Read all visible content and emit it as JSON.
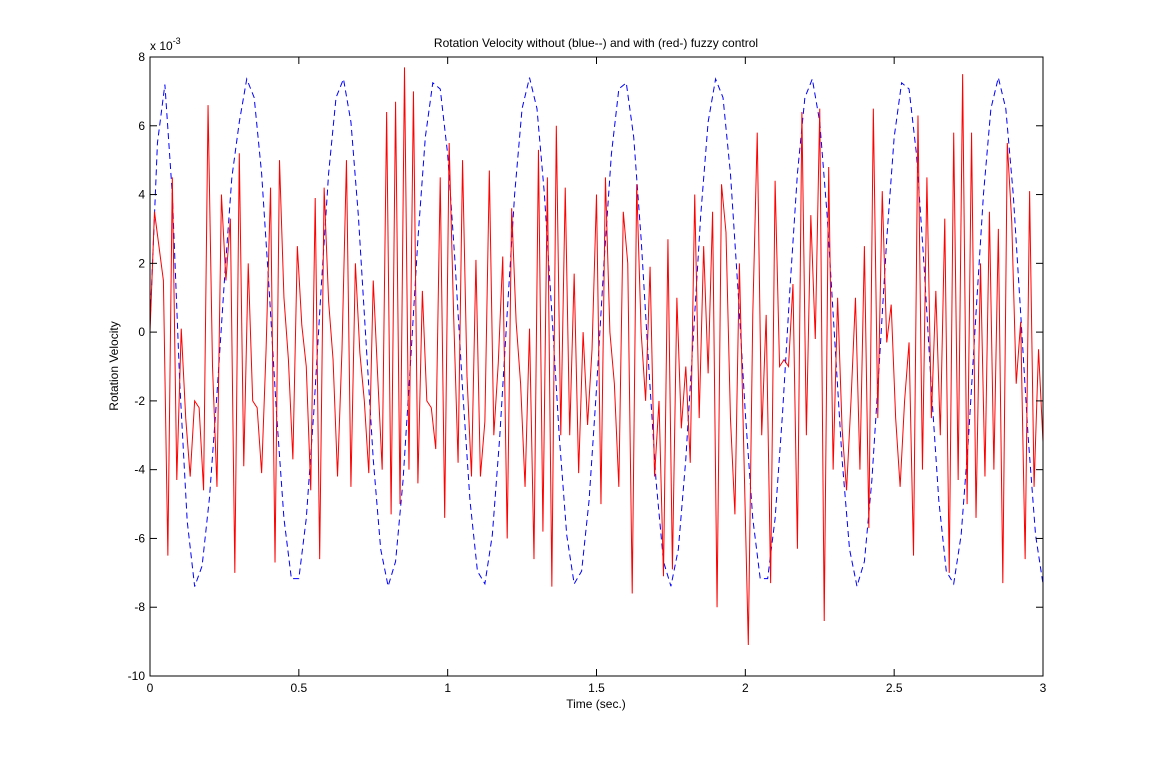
{
  "chart_data": {
    "type": "line",
    "title": "Rotation Velocity without (blue--) and with (red-) fuzzy control",
    "x_label": "Time (sec.)",
    "y_label": "Rotation Velocity",
    "y_multiplier": {
      "base": "x 10",
      "exponent": "-3"
    },
    "xlim": [
      0,
      3
    ],
    "xticks": [
      0,
      0.5,
      1,
      1.5,
      2,
      2.5,
      3
    ],
    "ylim": [
      -10,
      8
    ],
    "yticks": [
      -10,
      -8,
      -6,
      -4,
      -2,
      0,
      2,
      4,
      6,
      8
    ],
    "grid": false,
    "series": [
      {
        "color": "#0000ff",
        "dash": true,
        "x": [
          0,
          0.025,
          0.05,
          0.075,
          0.1,
          0.125,
          0.15,
          0.175,
          0.2,
          0.225,
          0.25,
          0.275,
          0.3,
          0.325,
          0.35,
          0.375,
          0.4,
          0.425,
          0.45,
          0.475,
          0.5,
          0.525,
          0.55,
          0.575,
          0.6,
          0.625,
          0.65,
          0.675,
          0.7,
          0.725,
          0.75,
          0.775,
          0.8,
          0.825,
          0.85,
          0.875,
          0.9,
          0.925,
          0.95,
          0.975,
          1,
          1.025,
          1.05,
          1.075,
          1.1,
          1.125,
          1.15,
          1.175,
          1.2,
          1.225,
          1.25,
          1.275,
          1.3,
          1.325,
          1.35,
          1.375,
          1.4,
          1.425,
          1.45,
          1.475,
          1.5,
          1.525,
          1.55,
          1.575,
          1.6,
          1.625,
          1.65,
          1.675,
          1.7,
          1.725,
          1.75,
          1.775,
          1.8,
          1.825,
          1.85,
          1.875,
          1.9,
          1.925,
          1.95,
          1.975,
          2,
          2.025,
          2.05,
          2.075,
          2.1,
          2.125,
          2.15,
          2.175,
          2.2,
          2.225,
          2.25,
          2.275,
          2.3,
          2.325,
          2.35,
          2.375,
          2.4,
          2.425,
          2.45,
          2.475,
          2.5,
          2.525,
          2.55,
          2.575,
          2.6,
          2.625,
          2.65,
          2.675,
          2.7,
          2.725,
          2.75,
          2.775,
          2.8,
          2.825,
          2.85,
          2.875,
          2.9,
          2.925,
          2.95,
          2.975,
          3
        ],
        "values": [
          0.2,
          5.5,
          7.2,
          4.0,
          -1.5,
          -5.5,
          -7.4,
          -6.8,
          -4.8,
          -1.8,
          1.5,
          4.5,
          6.11,
          7.36,
          6.82,
          4.61,
          1.28,
          -2.36,
          -5.42,
          -7.17,
          -7.17,
          -5.42,
          -2.36,
          1.28,
          4.61,
          6.82,
          7.36,
          6.11,
          3.38,
          -0.18,
          -3.7,
          -6.31,
          -7.39,
          -6.67,
          -4.32,
          -0.92,
          2.7,
          5.67,
          7.25,
          7.07,
          5.17,
          2.0,
          -1.65,
          -4.9,
          -6.95,
          -7.32,
          -5.9,
          -3.04,
          0.55,
          4.01,
          6.5,
          7.4,
          6.5,
          4.01,
          0.55,
          -3.04,
          -5.9,
          -7.32,
          -6.95,
          -4.9,
          -1.65,
          2.0,
          5.17,
          7.07,
          7.25,
          5.67,
          2.7,
          -0.92,
          -4.32,
          -6.67,
          -7.39,
          -6.31,
          -3.7,
          -0.18,
          3.38,
          6.11,
          7.36,
          6.82,
          4.61,
          1.28,
          -2.36,
          -5.42,
          -7.17,
          -7.17,
          -5.42,
          -2.36,
          1.28,
          4.61,
          6.82,
          7.36,
          6.11,
          3.38,
          -0.18,
          -3.7,
          -6.31,
          -7.39,
          -6.67,
          -4.32,
          -0.92,
          2.7,
          5.67,
          7.25,
          7.07,
          5.17,
          2.0,
          -1.65,
          -4.9,
          -6.95,
          -7.32,
          -5.9,
          -3.04,
          0.55,
          4.01,
          6.5,
          7.4,
          6.5,
          4.01,
          0.55,
          -3.04,
          -5.9,
          -7.32
        ]
      },
      {
        "color": "#ff0000",
        "dash": false,
        "x": [
          0,
          0.015,
          0.03,
          0.045,
          0.06,
          0.075,
          0.09,
          0.105,
          0.12,
          0.135,
          0.15,
          0.165,
          0.18,
          0.195,
          0.21,
          0.225,
          0.24,
          0.255,
          0.27,
          0.285,
          0.3,
          0.315,
          0.33,
          0.345,
          0.36,
          0.375,
          0.39,
          0.405,
          0.42,
          0.435,
          0.45,
          0.465,
          0.48,
          0.495,
          0.51,
          0.525,
          0.54,
          0.555,
          0.57,
          0.585,
          0.6,
          0.615,
          0.63,
          0.645,
          0.66,
          0.675,
          0.69,
          0.705,
          0.72,
          0.735,
          0.75,
          0.765,
          0.78,
          0.795,
          0.81,
          0.825,
          0.84,
          0.855,
          0.87,
          0.885,
          0.9,
          0.915,
          0.93,
          0.945,
          0.96,
          0.975,
          0.99,
          1.005,
          1.02,
          1.035,
          1.05,
          1.065,
          1.08,
          1.095,
          1.11,
          1.125,
          1.14,
          1.155,
          1.17,
          1.185,
          1.2,
          1.215,
          1.23,
          1.245,
          1.26,
          1.275,
          1.29,
          1.305,
          1.32,
          1.335,
          1.35,
          1.365,
          1.38,
          1.395,
          1.41,
          1.425,
          1.44,
          1.455,
          1.47,
          1.485,
          1.5,
          1.515,
          1.53,
          1.545,
          1.56,
          1.575,
          1.59,
          1.605,
          1.62,
          1.635,
          1.65,
          1.665,
          1.68,
          1.695,
          1.71,
          1.725,
          1.74,
          1.755,
          1.77,
          1.785,
          1.8,
          1.815,
          1.83,
          1.845,
          1.86,
          1.875,
          1.89,
          1.905,
          1.92,
          1.935,
          1.95,
          1.965,
          1.98,
          1.995,
          2.01,
          2.025,
          2.04,
          2.055,
          2.07,
          2.085,
          2.1,
          2.115,
          2.13,
          2.145,
          2.16,
          2.175,
          2.19,
          2.205,
          2.22,
          2.235,
          2.25,
          2.265,
          2.28,
          2.295,
          2.31,
          2.325,
          2.34,
          2.355,
          2.37,
          2.385,
          2.4,
          2.415,
          2.43,
          2.445,
          2.46,
          2.475,
          2.49,
          2.505,
          2.52,
          2.535,
          2.55,
          2.565,
          2.58,
          2.595,
          2.61,
          2.625,
          2.64,
          2.655,
          2.67,
          2.685,
          2.7,
          2.715,
          2.73,
          2.745,
          2.76,
          2.775,
          2.79,
          2.805,
          2.82,
          2.835,
          2.85,
          2.865,
          2.88,
          2.895,
          2.91,
          2.925,
          2.94,
          2.955,
          2.97,
          2.985,
          3
        ],
        "values": [
          0.0,
          3.5,
          2.5,
          1.5,
          -6.5,
          4.5,
          -4.3,
          0.1,
          -2.5,
          -4.2,
          -2.0,
          -2.2,
          -4.6,
          6.6,
          -1.0,
          -4.5,
          4.0,
          1.5,
          3.3,
          -7.0,
          5.2,
          -3.9,
          2.0,
          -2.0,
          -2.2,
          -4.1,
          -0.5,
          4.2,
          -6.7,
          5.0,
          1.0,
          -0.8,
          -3.7,
          2.5,
          0.2,
          -1.0,
          -4.6,
          3.9,
          -6.6,
          4.2,
          0.9,
          -0.8,
          -4.2,
          -0.5,
          5.0,
          -4.5,
          2.0,
          -0.6,
          -2.0,
          -4.1,
          1.5,
          -1.3,
          -4.0,
          6.4,
          -5.3,
          6.7,
          -5.0,
          7.7,
          -4.0,
          7.0,
          -4.4,
          1.2,
          -2.0,
          -2.2,
          -3.4,
          4.5,
          -5.4,
          5.5,
          0.5,
          -3.8,
          5.0,
          -1.3,
          -4.2,
          2.1,
          -4.2,
          -2.6,
          4.7,
          -3.0,
          -0.9,
          2.2,
          -6.0,
          3.6,
          0.3,
          -1.5,
          -4.5,
          0.1,
          -6.6,
          5.3,
          -5.8,
          4.5,
          -7.4,
          6.0,
          -3.0,
          4.2,
          -3.0,
          1.7,
          -4.1,
          0.0,
          -2.7,
          -0.5,
          4.0,
          -5.0,
          4.5,
          0.0,
          -1.5,
          -4.5,
          3.5,
          2.0,
          -7.6,
          4.3,
          0.0,
          -2.0,
          1.9,
          -4.2,
          -2.0,
          -7.1,
          2.7,
          -6.9,
          1.0,
          -2.8,
          -1.0,
          -3.8,
          4.0,
          -2.5,
          2.5,
          -1.2,
          3.5,
          -8.0,
          4.3,
          2.9,
          -2.5,
          -5.3,
          2.0,
          -3.5,
          -9.1,
          0.5,
          5.8,
          -3.0,
          0.5,
          -7.3,
          4.4,
          -1.0,
          -0.8,
          -1.0,
          1.4,
          -6.3,
          6.4,
          -3.0,
          3.4,
          -0.2,
          6.5,
          -8.4,
          4.8,
          -4.0,
          1.0,
          -2.8,
          -4.6,
          -2.0,
          1.0,
          -4.0,
          2.5,
          -5.7,
          6.5,
          -2.5,
          4.1,
          -0.3,
          0.8,
          -2.5,
          -4.5,
          -2.0,
          -0.3,
          -6.5,
          6.3,
          -4.0,
          4.5,
          -2.5,
          1.2,
          -3.0,
          3.3,
          -7.0,
          5.8,
          -4.3,
          7.5,
          -5.0,
          5.8,
          -5.4,
          2.0,
          -4.2,
          3.5,
          -4.0,
          3.0,
          -7.3,
          5.5,
          3.2,
          -1.5,
          0.3,
          -6.6,
          4.1,
          -4.5,
          -0.5,
          -3.2
        ]
      }
    ]
  }
}
